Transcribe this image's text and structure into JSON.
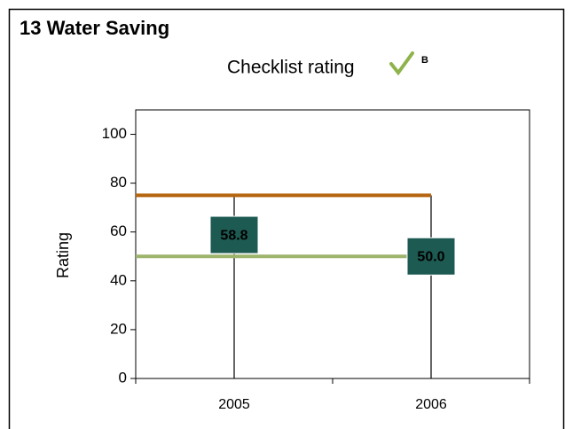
{
  "chart_data": {
    "type": "point",
    "title": "13  Water Saving",
    "subtitle": "Checklist rating",
    "subtitle_note": "B",
    "y_label": "Rating",
    "categories": [
      "2005",
      "2006"
    ],
    "values": [
      58.8,
      50.0
    ],
    "value_labels": [
      "58.8",
      "50.0"
    ],
    "color": "#1d5a52",
    "reference_lines": [
      {
        "value": 75,
        "color": "#b5650f"
      },
      {
        "value": 50,
        "color": "#9db46c"
      }
    ],
    "ylim": [
      0,
      110
    ],
    "yticks": [
      0,
      20,
      40,
      60,
      80,
      100
    ]
  }
}
